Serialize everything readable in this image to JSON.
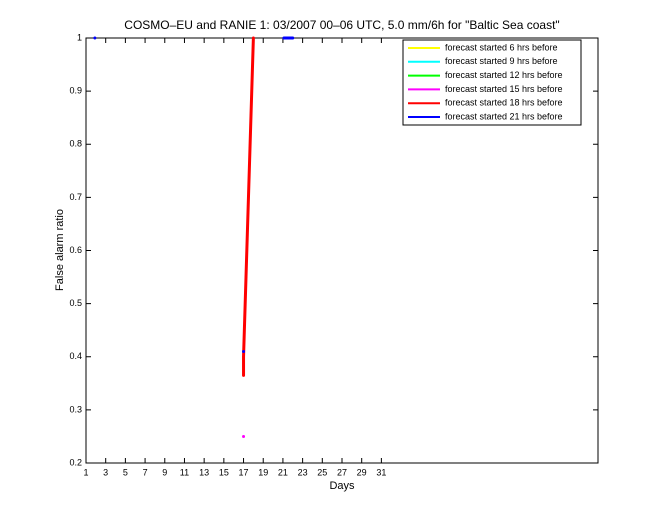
{
  "chart_data": {
    "type": "line",
    "title": "COSMO–EU and RANIE 1: 03/2007 00–06 UTC, 5.0 mm/6h for \"Baltic Sea coast\"",
    "xlabel": "Days",
    "ylabel": "False alarm ratio",
    "xlim": [
      1,
      53
    ],
    "ylim": [
      0.2,
      1
    ],
    "xticks": [
      1,
      3,
      5,
      7,
      9,
      11,
      13,
      15,
      17,
      19,
      21,
      23,
      25,
      27,
      29,
      31
    ],
    "yticks": [
      0.2,
      0.3,
      0.4,
      0.5,
      0.6,
      0.7,
      0.8,
      0.9,
      1
    ],
    "legend": "upper right",
    "series": [
      {
        "name": "forecast started 6 hrs before",
        "color": "#ffff00",
        "x": [],
        "values": []
      },
      {
        "name": "forecast started 9 hrs before",
        "color": "#00ffff",
        "x": [],
        "values": []
      },
      {
        "name": "forecast started 12 hrs before",
        "color": "#00ff00",
        "x": [],
        "values": []
      },
      {
        "name": "forecast started 15 hrs before",
        "color": "#ff00ff",
        "x": [
          17
        ],
        "values": [
          0.25
        ]
      },
      {
        "name": "forecast started 18 hrs before",
        "color": "#ff0000",
        "x": [
          17,
          17,
          18
        ],
        "values": [
          0.365,
          0.4,
          1
        ]
      },
      {
        "name": "forecast started 21 hrs before",
        "color": "#0000ff",
        "x": [
          1.9,
          17,
          17,
          21.1,
          21.1,
          22
        ],
        "values": [
          1,
          null,
          0.41,
          null,
          1,
          1
        ]
      }
    ]
  }
}
